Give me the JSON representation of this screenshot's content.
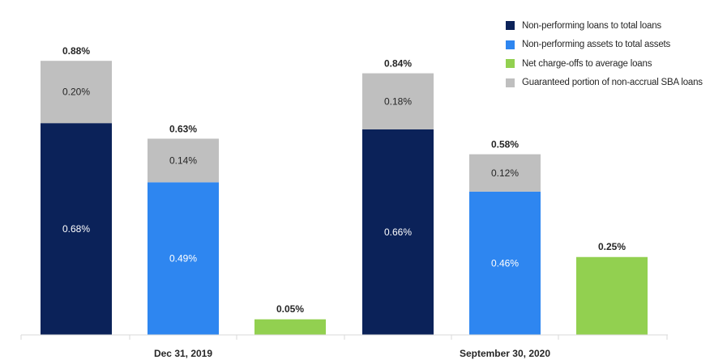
{
  "chart_data": {
    "type": "bar",
    "stacked": true,
    "categories": [
      "Dec 31, 2019",
      "September 30, 2020"
    ],
    "series": [
      {
        "name": "Non-performing loans to total loans",
        "color": "#0b2259",
        "base": [
          "0.68%",
          "0.66%"
        ],
        "guaranteed": [
          "0.20%",
          "0.18%"
        ],
        "total": [
          "0.88%",
          "0.84%"
        ],
        "base_values": [
          0.68,
          0.66
        ],
        "guaranteed_values": [
          0.2,
          0.18
        ]
      },
      {
        "name": "Non-performing assets to total assets",
        "color": "#2e86f0",
        "base": [
          "0.49%",
          "0.46%"
        ],
        "guaranteed": [
          "0.14%",
          "0.12%"
        ],
        "total": [
          "0.63%",
          "0.58%"
        ],
        "base_values": [
          0.49,
          0.46
        ],
        "guaranteed_values": [
          0.14,
          0.12
        ]
      },
      {
        "name": "Net charge-offs to average loans",
        "color": "#92d050",
        "base": [
          null,
          null
        ],
        "guaranteed": [
          null,
          null
        ],
        "total": [
          "0.05%",
          "0.25%"
        ],
        "base_values": [
          0.05,
          0.25
        ],
        "guaranteed_values": [
          0,
          0
        ]
      }
    ],
    "guaranteed_series": {
      "name": "Guaranteed portion of non-accrual SBA loans",
      "color": "#bfbfbf"
    },
    "ylim": [
      0,
      1.0
    ],
    "grid": false,
    "legend": "top-right",
    "xlabel": "",
    "ylabel": ""
  }
}
